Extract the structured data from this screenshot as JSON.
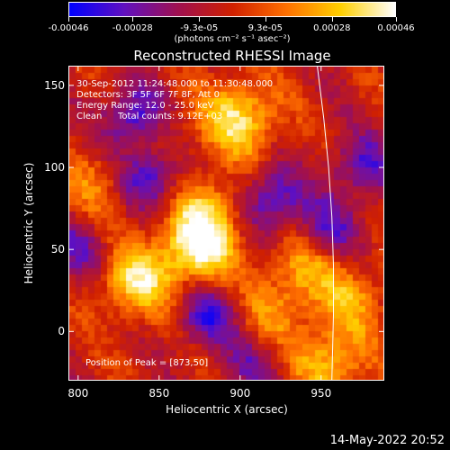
{
  "chart_data": {
    "type": "heatmap",
    "title": "Reconstructed RHESSI Image",
    "xlabel": "Heliocentric X (arcsec)",
    "ylabel": "Heliocentric Y (arcsec)",
    "xlim": [
      794,
      989
    ],
    "ylim": [
      -30,
      162
    ],
    "x_ticks": [
      800,
      850,
      900,
      950
    ],
    "y_ticks": [
      0,
      50,
      100,
      150
    ],
    "colorbar": {
      "ticks": [
        "-0.00046",
        "-0.00028",
        "-9.3e-05",
        "9.3e-05",
        "0.00028",
        "0.00046"
      ],
      "units": "(photons cm⁻² s⁻¹ asec⁻²)",
      "range": [
        -0.00046,
        0.00046
      ],
      "colors": [
        "#0000ff",
        "#6010c0",
        "#a01050",
        "#d02000",
        "#ff7000",
        "#ffd000",
        "#ffffff"
      ]
    },
    "annotations": {
      "time_range": "30-Sep-2012 11:24:48.000 to 11:30:48.000",
      "detectors": "Detectors: 3F 5F 6F 7F 8F, Att 0",
      "energy": "Energy Range: 12.0 - 25.0 keV",
      "clean_label": "Clean",
      "total_counts": "Total counts: 9.12E+03",
      "peak": "Position of Peak = [873,50]"
    },
    "peak": {
      "x": 873,
      "y": 50
    },
    "limb": [
      [
        948,
        162
      ],
      [
        952,
        130
      ],
      [
        955,
        100
      ],
      [
        957,
        70
      ],
      [
        958,
        40
      ],
      [
        958,
        10
      ],
      [
        957,
        -30
      ]
    ],
    "sources": [
      {
        "x": 873,
        "y": 50,
        "amp": 1.0
      },
      {
        "x": 835,
        "y": 30,
        "amp": 0.85
      },
      {
        "x": 900,
        "y": 130,
        "amp": 0.9
      },
      {
        "x": 880,
        "y": 75,
        "amp": 0.6
      },
      {
        "x": 940,
        "y": 40,
        "amp": 0.55
      },
      {
        "x": 955,
        "y": -20,
        "amp": 0.7
      },
      {
        "x": 970,
        "y": 20,
        "amp": 0.5
      },
      {
        "x": 850,
        "y": 120,
        "amp": 0.35
      },
      {
        "x": 810,
        "y": 90,
        "amp": 0.4
      },
      {
        "x": 920,
        "y": 10,
        "amp": 0.45
      }
    ],
    "negatives": [
      {
        "x": 835,
        "y": 130,
        "amp": 0.9
      },
      {
        "x": 845,
        "y": 95,
        "amp": 0.8
      },
      {
        "x": 880,
        "y": 10,
        "amp": 0.7
      },
      {
        "x": 920,
        "y": 80,
        "amp": 0.75
      },
      {
        "x": 955,
        "y": 60,
        "amp": 0.6
      },
      {
        "x": 800,
        "y": 50,
        "amp": 0.5
      },
      {
        "x": 975,
        "y": 100,
        "amp": 0.6
      },
      {
        "x": 910,
        "y": -20,
        "amp": 0.45
      }
    ]
  },
  "footer": {
    "timestamp": "14-May-2022 20:52"
  }
}
